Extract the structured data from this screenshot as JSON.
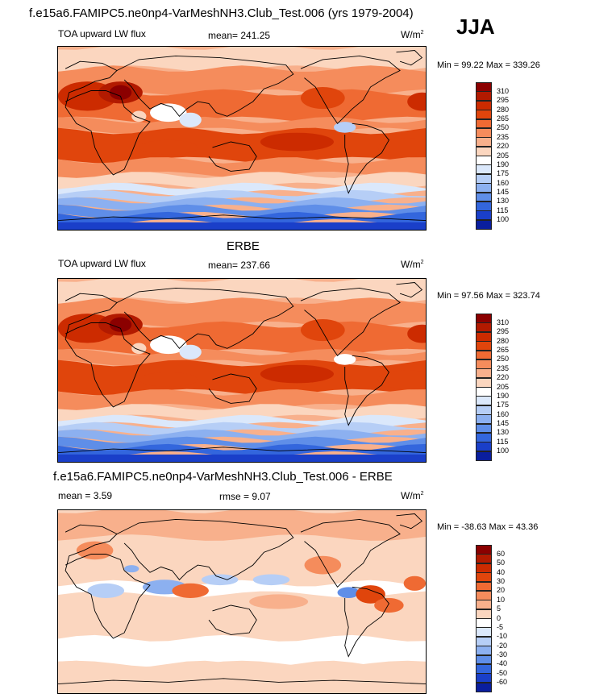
{
  "header": {
    "title": "f.e15a6.FAMIPC5.ne0np4-VarMeshNH3.Club_Test.006 (yrs 1979-2004)",
    "season": "JJA"
  },
  "panels": [
    {
      "title": "",
      "left_label": "TOA upward LW flux",
      "center_label": "mean= 241.25",
      "units_label": "W/m",
      "units_sup": "2",
      "min_label": "Min =  99.22 Max = 339.26",
      "palette": "model"
    },
    {
      "title": "ERBE",
      "left_label": "TOA upward LW flux",
      "center_label": "mean= 237.66",
      "units_label": "W/m",
      "units_sup": "2",
      "min_label": "Min =  97.56 Max = 323.74",
      "palette": "model"
    },
    {
      "title": "f.e15a6.FAMIPC5.ne0np4-VarMeshNH3.Club_Test.006 - ERBE",
      "left_label": "mean =   3.59",
      "center_label": "rmse =   9.07",
      "units_label": "W/m",
      "units_sup": "2",
      "min_label": "Min = -38.63 Max =  43.36",
      "palette": "diff"
    }
  ],
  "colorbars": {
    "model": {
      "labels": [
        "310",
        "295",
        "280",
        "265",
        "250",
        "235",
        "220",
        "205",
        "190",
        "175",
        "160",
        "145",
        "130",
        "115",
        "100"
      ],
      "colors": [
        "#8b0000",
        "#b21a00",
        "#cc2b00",
        "#e0450c",
        "#ef6a33",
        "#f58c5c",
        "#f8b08c",
        "#fbd6bf",
        "#ffffff",
        "#dbe8fb",
        "#b6cef6",
        "#8cb0f0",
        "#5f8ee8",
        "#3366dd",
        "#1a3fc9",
        "#0a1e9e"
      ]
    },
    "diff": {
      "labels": [
        "60",
        "50",
        "40",
        "30",
        "20",
        "10",
        "5",
        "0",
        "-5",
        "-10",
        "-20",
        "-30",
        "-40",
        "-50",
        "-60"
      ],
      "colors": [
        "#8b0000",
        "#b21a00",
        "#cc2b00",
        "#e0450c",
        "#ef6a33",
        "#f58c5c",
        "#f8b08c",
        "#fbd6bf",
        "#ffffff",
        "#dbe8fb",
        "#b6cef6",
        "#8cb0f0",
        "#5f8ee8",
        "#3366dd",
        "#1a3fc9",
        "#0a1e9e"
      ]
    }
  }
}
